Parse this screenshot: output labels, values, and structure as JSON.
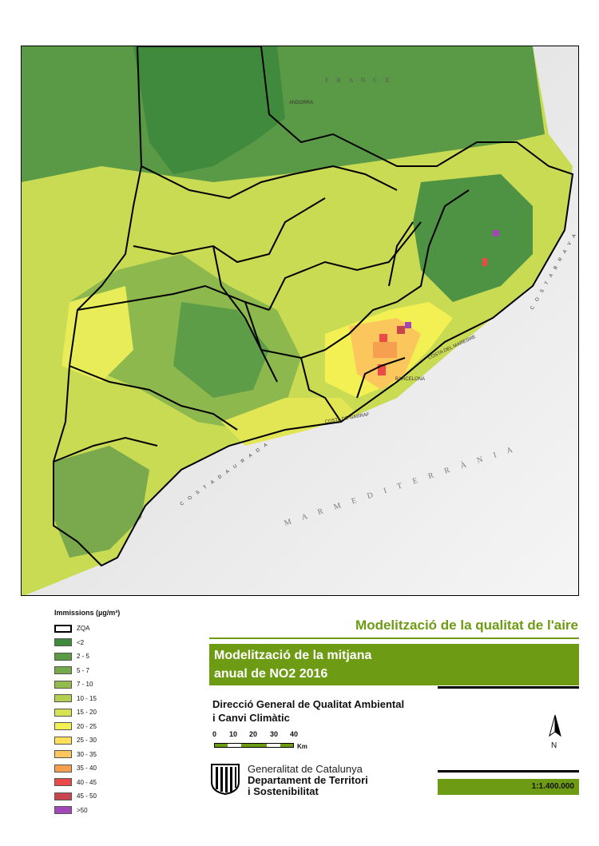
{
  "map": {
    "place_labels": {
      "france": "F R A N C E",
      "andorra": "ANDORRA",
      "barcelona": "BARCELONA",
      "mediterranean": "M A R   M E D I T E R R À N I A",
      "costa_daurada": "C O S T A   D A U R A D A",
      "costa_brava": "C O S T A   B R A V A",
      "costa_maresme": "COSTA DEL MARESME",
      "costa_garraf": "COSTA DE GARRAF"
    }
  },
  "legend": {
    "title": "Immissions (µg/m³)",
    "items": [
      {
        "label": "ZQA",
        "color": "#ffffff",
        "outline": true
      },
      {
        "label": "<2",
        "color": "#3f8a3c"
      },
      {
        "label": "2 - 5",
        "color": "#5b9a45"
      },
      {
        "label": "5 - 7",
        "color": "#76a84c"
      },
      {
        "label": "7 - 10",
        "color": "#93ba4d"
      },
      {
        "label": "10 - 15",
        "color": "#b5cf50"
      },
      {
        "label": "15 - 20",
        "color": "#d6e352"
      },
      {
        "label": "20 - 25",
        "color": "#f3f053"
      },
      {
        "label": "25 - 30",
        "color": "#fde15a"
      },
      {
        "label": "30 - 35",
        "color": "#fbc65b"
      },
      {
        "label": "35 - 40",
        "color": "#f6a04f"
      },
      {
        "label": "40 - 45",
        "color": "#ec4a48"
      },
      {
        "label": "45 - 50",
        "color": "#c8454e"
      },
      {
        "label": ">50",
        "color": "#a347b6"
      }
    ]
  },
  "header": {
    "main_title": "Modelització de la qualitat de l'aire",
    "subtitle_line1": "Modelització de la mitjana",
    "subtitle_line2": "anual de NO2 2016"
  },
  "org": {
    "line1": "Direcció General de Qualitat Ambiental",
    "line2": "i Canvi Climàtic"
  },
  "scalebar": {
    "ticks": [
      "0",
      "10",
      "20",
      "30",
      "40"
    ],
    "unit": "Km"
  },
  "north_arrow": {
    "label": "N",
    "icon": "north-arrow-icon"
  },
  "logo": {
    "gov": "Generalitat de Catalunya",
    "dept_line1": "Departament de Territori",
    "dept_line2": "i Sostenibilitat",
    "icon": "generalitat-shield-icon"
  },
  "scale": {
    "text": "1:1.400.000"
  },
  "colors": {
    "accent": "#6e9b14"
  }
}
